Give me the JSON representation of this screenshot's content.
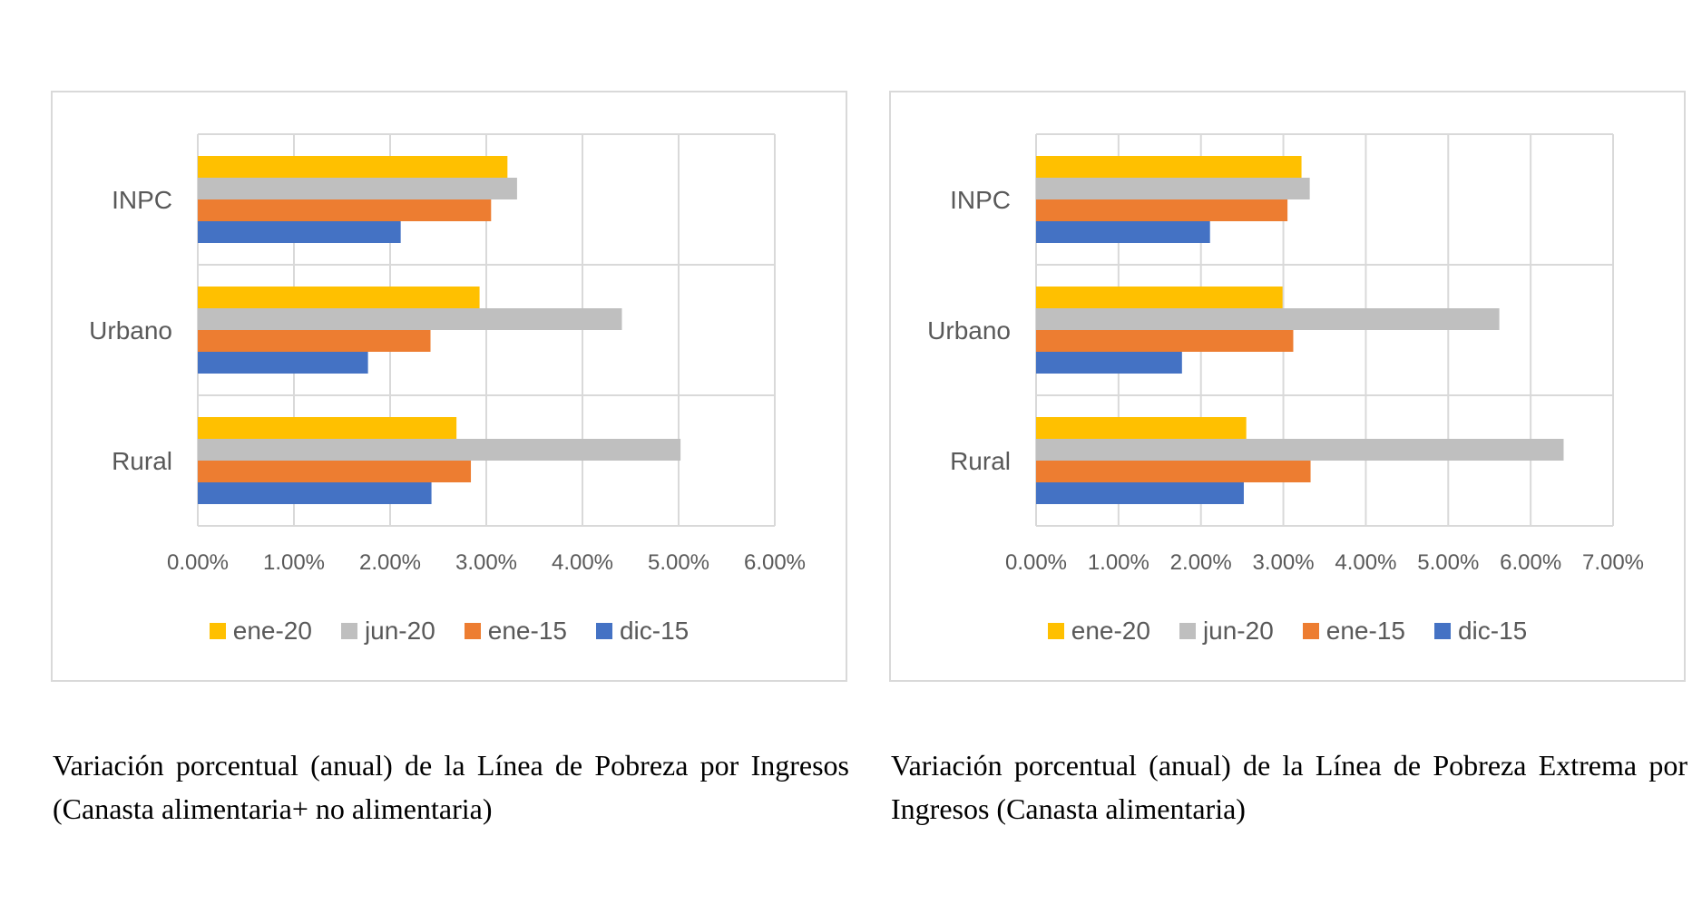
{
  "colors": {
    "ene_20": "#FFC000",
    "jun_20": "#BFBFBF",
    "ene_15": "#ED7D31",
    "dic_15": "#4472C4",
    "grid": "#d9d9d9"
  },
  "chart_data": [
    {
      "type": "bar",
      "orientation": "horizontal",
      "categories": [
        "INPC",
        "Urbano",
        "Rural"
      ],
      "series": [
        {
          "name": "ene-20",
          "color": "#FFC000",
          "values": [
            3.22,
            2.93,
            2.69
          ]
        },
        {
          "name": "jun-20",
          "color": "#BFBFBF",
          "values": [
            3.32,
            4.41,
            5.02
          ]
        },
        {
          "name": "ene-15",
          "color": "#ED7D31",
          "values": [
            3.05,
            2.42,
            2.84
          ]
        },
        {
          "name": "dic-15",
          "color": "#4472C4",
          "values": [
            2.11,
            1.77,
            2.43
          ]
        }
      ],
      "xticks": [
        "0.00%",
        "1.00%",
        "2.00%",
        "3.00%",
        "4.00%",
        "5.00%",
        "6.00%"
      ],
      "xlim": [
        0,
        6
      ],
      "grid": true,
      "legend_position": "bottom",
      "caption": "Variación porcentual (anual) de la Línea de Pobreza por Ingresos (Canasta alimentaria+ no alimentaria)"
    },
    {
      "type": "bar",
      "orientation": "horizontal",
      "categories": [
        "INPC",
        "Urbano",
        "Rural"
      ],
      "series": [
        {
          "name": "ene-20",
          "color": "#FFC000",
          "values": [
            3.22,
            2.99,
            2.55
          ]
        },
        {
          "name": "jun-20",
          "color": "#BFBFBF",
          "values": [
            3.32,
            5.62,
            6.4
          ]
        },
        {
          "name": "ene-15",
          "color": "#ED7D31",
          "values": [
            3.05,
            3.12,
            3.33
          ]
        },
        {
          "name": "dic-15",
          "color": "#4472C4",
          "values": [
            2.11,
            1.77,
            2.52
          ]
        }
      ],
      "xticks": [
        "0.00%",
        "1.00%",
        "2.00%",
        "3.00%",
        "4.00%",
        "5.00%",
        "6.00%",
        "7.00%"
      ],
      "xlim": [
        0,
        7
      ],
      "grid": true,
      "legend_position": "bottom",
      "caption": "Variación porcentual (anual) de la Línea de Pobreza Extrema por Ingresos (Canasta alimentaria)"
    }
  ]
}
